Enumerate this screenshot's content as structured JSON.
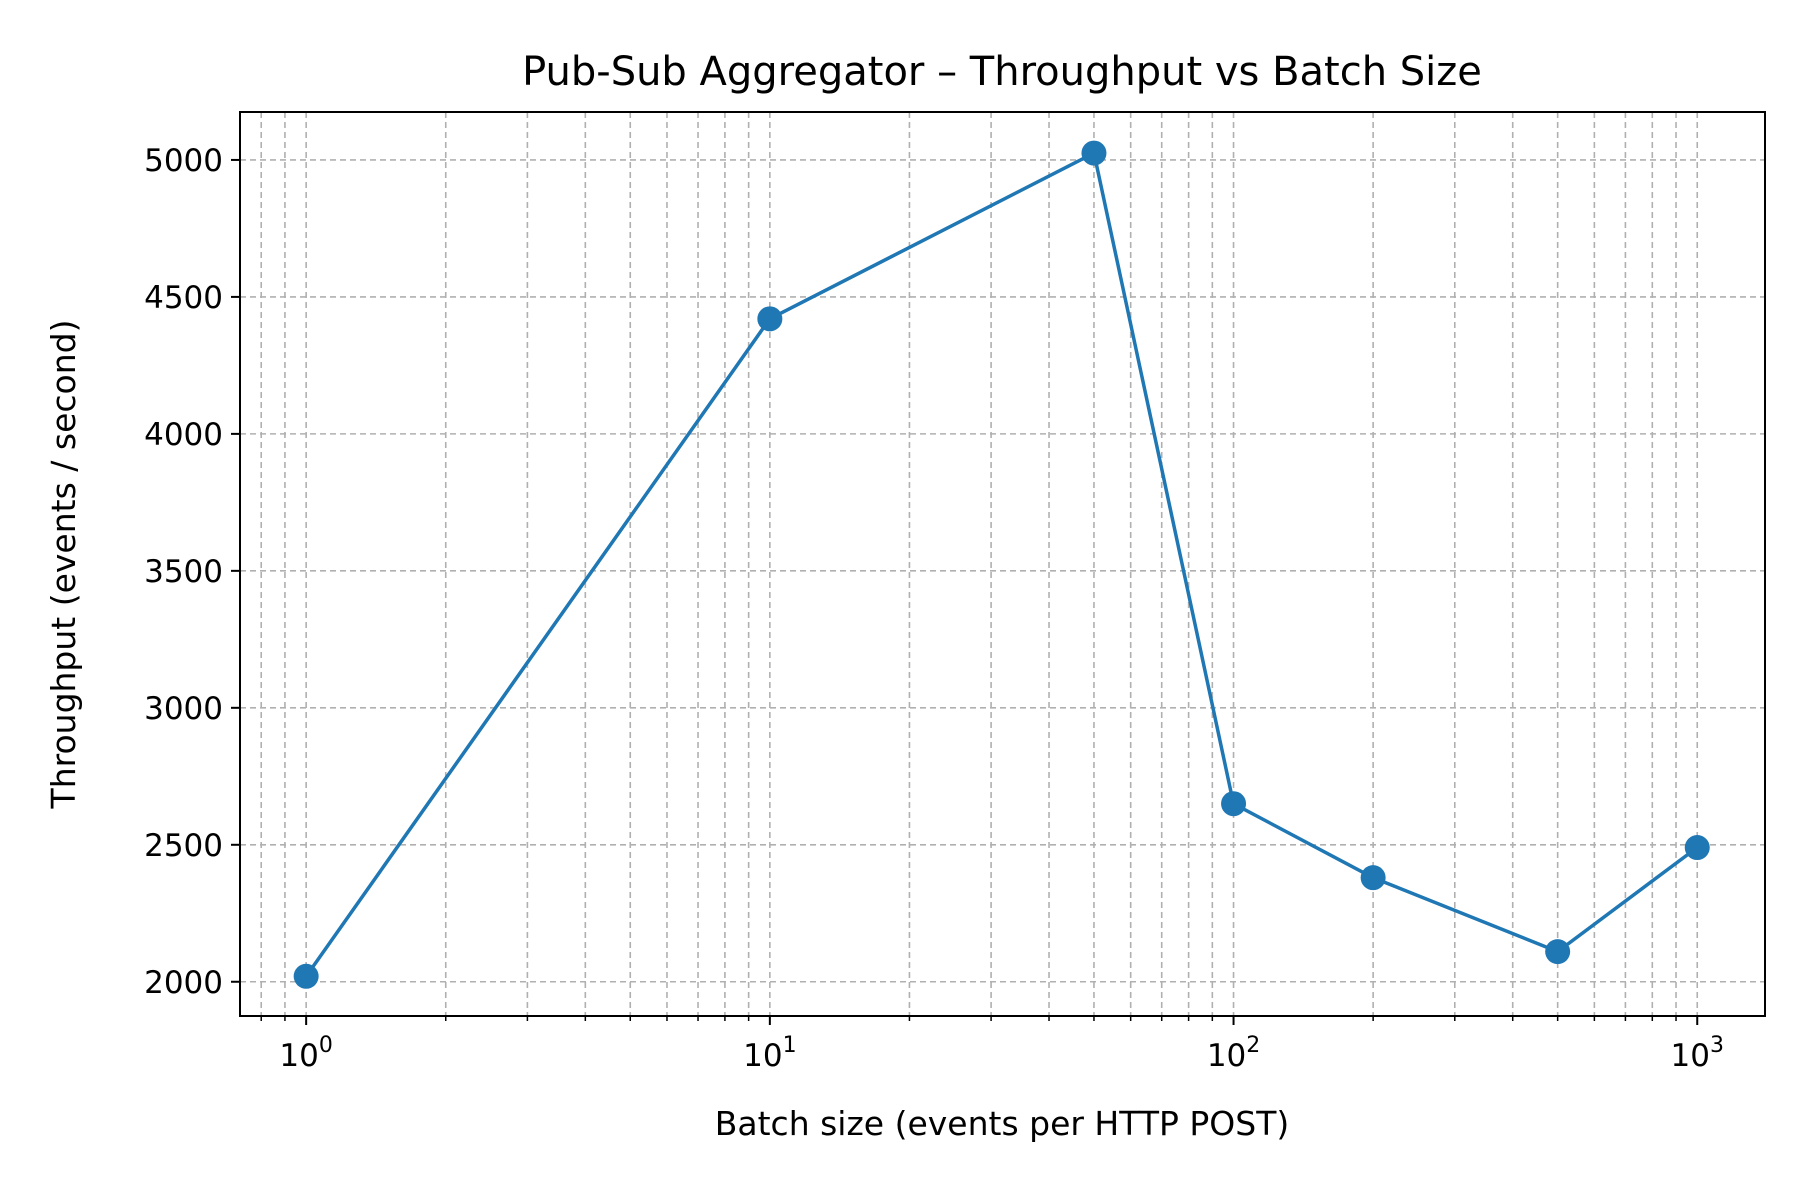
{
  "chart_data": {
    "type": "line",
    "title": "Pub-Sub Aggregator – Throughput vs Batch Size",
    "xlabel": "Batch size (events per HTTP POST)",
    "ylabel": "Throughput (events / second)",
    "x_scale": "log",
    "xlim": [
      0.72,
      1400
    ],
    "ylim": [
      1875,
      5175
    ],
    "grid": true,
    "grid_style": "dashed",
    "x_ticks": [
      {
        "value": 1,
        "base": "10",
        "exp": "0"
      },
      {
        "value": 10,
        "base": "10",
        "exp": "1"
      },
      {
        "value": 100,
        "base": "10",
        "exp": "2"
      },
      {
        "value": 1000,
        "base": "10",
        "exp": "3"
      }
    ],
    "y_ticks": [
      2000,
      2500,
      3000,
      3500,
      4000,
      4500,
      5000
    ],
    "series": [
      {
        "color": "#1f77b4",
        "marker": "circle",
        "x": [
          1,
          10,
          50,
          100,
          200,
          500,
          1000
        ],
        "y": [
          2020,
          4420,
          5025,
          2650,
          2380,
          2110,
          2490
        ]
      }
    ]
  }
}
